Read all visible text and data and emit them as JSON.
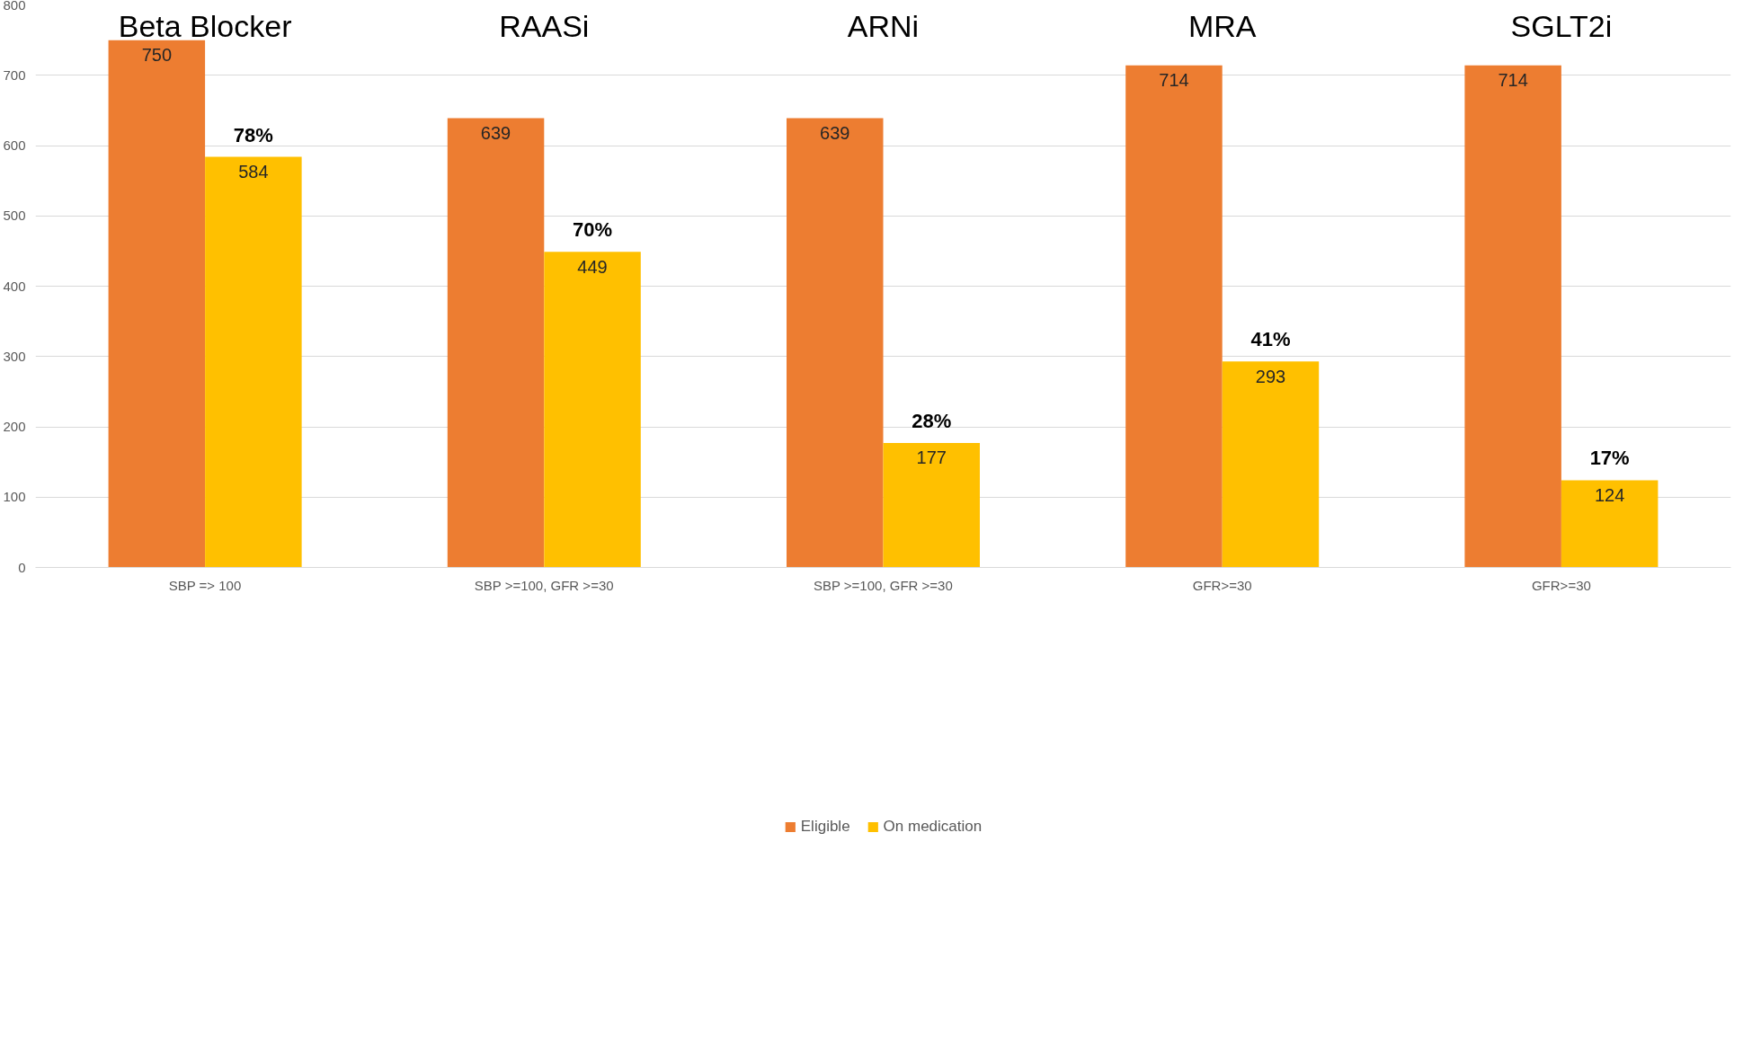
{
  "chart_data": {
    "type": "bar",
    "categories": [
      "SBP => 100",
      "SBP >=100, GFR >=30",
      "SBP >=100, GFR >=30",
      "GFR>=30",
      "GFR>=30"
    ],
    "series": [
      {
        "name": "Eligible",
        "color": "#ed7d31",
        "values": [
          750,
          639,
          639,
          714,
          714
        ]
      },
      {
        "name": "On medication",
        "color": "#ffc000",
        "values": [
          584,
          449,
          177,
          293,
          124
        ]
      }
    ],
    "ylim": [
      0,
      800
    ],
    "yticks": [
      0,
      100,
      200,
      300,
      400,
      500,
      600,
      700,
      800
    ],
    "grid": "y",
    "legend": "bottom",
    "data_labels": true,
    "annotations": [
      "Beta Blocker",
      "RAASi",
      "ARNi",
      "MRA",
      "SGLT2i",
      "78%",
      "70%",
      "28%",
      "41%",
      "17%"
    ]
  }
}
